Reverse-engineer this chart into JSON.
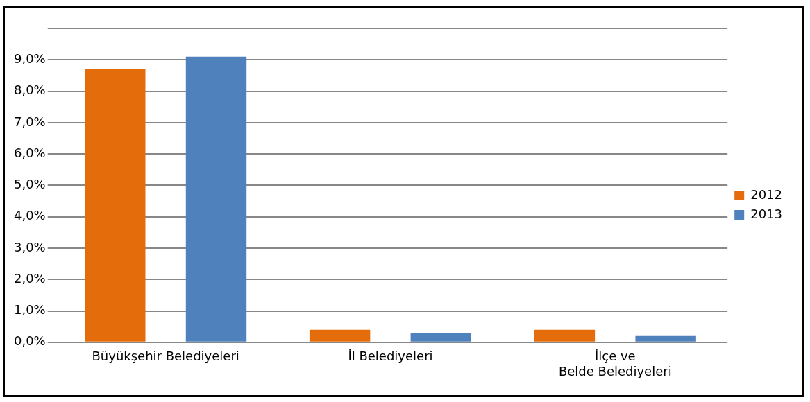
{
  "chart_data": {
    "type": "bar",
    "categories": [
      "Büyükşehir Belediyeleri",
      "İl Belediyeleri",
      "İlçe ve Belde Belediyeleri"
    ],
    "series": [
      {
        "name": "2012",
        "color": "#e46c0a",
        "values": [
          8.7,
          0.4,
          0.4
        ]
      },
      {
        "name": "2013",
        "color": "#4f81bd",
        "values": [
          9.1,
          0.3,
          0.2
        ]
      }
    ],
    "ylim": [
      0,
      10
    ],
    "yticks": [
      {
        "value": 0,
        "label": "0,0%"
      },
      {
        "value": 1,
        "label": "1,0%"
      },
      {
        "value": 2,
        "label": "2,0%"
      },
      {
        "value": 3,
        "label": "3,0%"
      },
      {
        "value": 4,
        "label": "4,0%"
      },
      {
        "value": 5,
        "label": "5,0%"
      },
      {
        "value": 6,
        "label": "6,0%"
      },
      {
        "value": 7,
        "label": "7,0%"
      },
      {
        "value": 8,
        "label": "8,0%"
      },
      {
        "value": 9,
        "label": "9,0%"
      },
      {
        "value": 10,
        "label": null
      }
    ],
    "grid": "y",
    "legend": "right"
  }
}
